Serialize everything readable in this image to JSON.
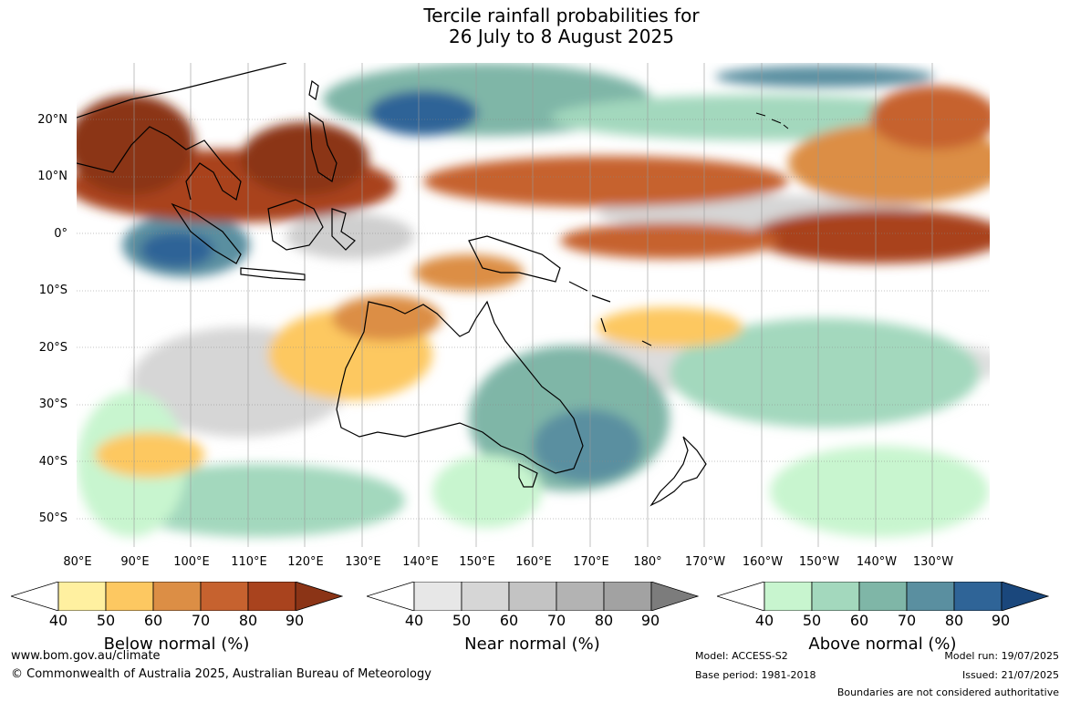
{
  "title_line1": "Tercile rainfall probabilities for",
  "title_line2": "26 July to 8 August 2025",
  "lat_labels": [
    "20°N",
    "10°N",
    "0°",
    "10°S",
    "20°S",
    "30°S",
    "40°S",
    "50°S"
  ],
  "lon_labels": [
    "80°E",
    "90°E",
    "100°E",
    "110°E",
    "120°E",
    "130°E",
    "140°E",
    "150°E",
    "160°E",
    "170°E",
    "180°",
    "170°W",
    "160°W",
    "150°W",
    "140°W",
    "130°W"
  ],
  "colorbars": [
    {
      "title": "Below normal (%)",
      "ticks": [
        "40",
        "50",
        "60",
        "70",
        "80",
        "90"
      ],
      "colors": [
        "#fff0a0",
        "#fdc861",
        "#dc8e45",
        "#c6622f",
        "#a9431e",
        "#8b3416"
      ]
    },
    {
      "title": "Near normal (%)",
      "ticks": [
        "40",
        "50",
        "60",
        "70",
        "80",
        "90"
      ],
      "colors": [
        "#e7e7e7",
        "#d6d6d6",
        "#c3c3c3",
        "#b3b3b3",
        "#a2a2a2",
        "#7c7c7c"
      ]
    },
    {
      "title": "Above normal (%)",
      "ticks": [
        "40",
        "50",
        "60",
        "70",
        "80",
        "90"
      ],
      "colors": [
        "#c8f5cf",
        "#a3d8bd",
        "#7fb6a7",
        "#5a8fa0",
        "#2f6497",
        "#1a477c"
      ]
    }
  ],
  "footer": {
    "website": "www.bom.gov.au/climate",
    "copyright": "© Commonwealth of Australia 2025, Australian Bureau of Meteorology",
    "model": "Model: ACCESS-S2",
    "base_period": "Base period: 1981-2018",
    "model_run": "Model run: 19/07/2025",
    "issued": "Issued: 21/07/2025",
    "boundaries": "Boundaries are not considered authoritative"
  },
  "map": {
    "extent_lon": [
      80,
      240
    ],
    "extent_lat": [
      -55,
      30
    ]
  }
}
